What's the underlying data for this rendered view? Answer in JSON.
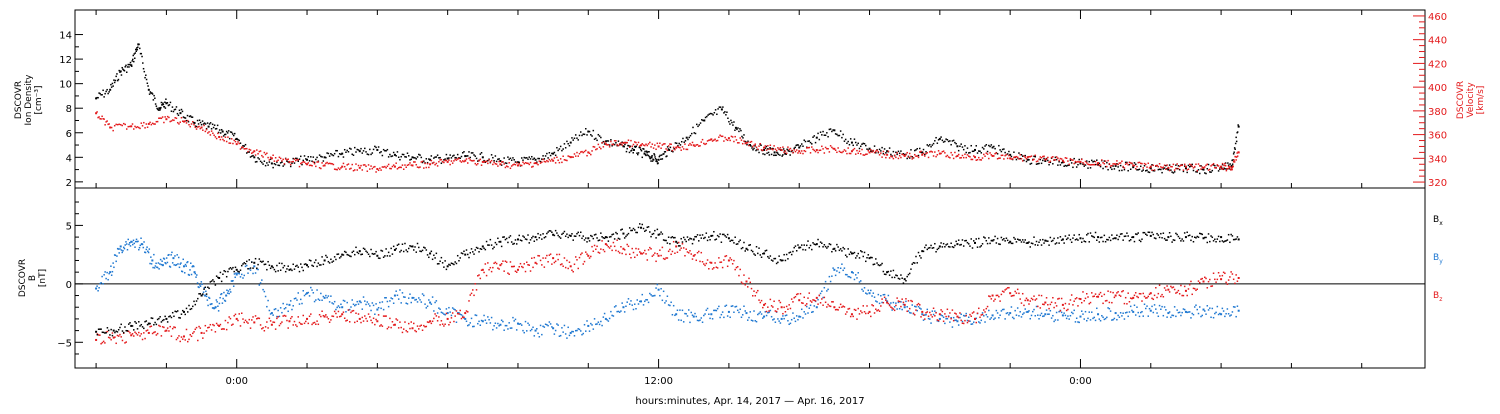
{
  "chart_data": [
    {
      "type": "scatter",
      "panel": "top",
      "left_axis_label": [
        "DSCOVR",
        "Ion Density",
        "[cm⁻³]"
      ],
      "right_axis_label": [
        "DSCOVR",
        "Velocity",
        "[km/s]"
      ],
      "y_left": {
        "ylim": [
          1.5,
          16
        ],
        "ticks": [
          2,
          4,
          6,
          8,
          10,
          12,
          14
        ],
        "tick_labels": [
          "2",
          "4",
          "6",
          "8",
          "10",
          "12",
          "14"
        ]
      },
      "y_right": {
        "ylim": [
          315,
          465
        ],
        "ticks": [
          320,
          340,
          360,
          380,
          400,
          420,
          440,
          460
        ],
        "tick_labels": [
          "320",
          "340",
          "360",
          "380",
          "400",
          "420",
          "440",
          "460"
        ]
      },
      "series": [
        {
          "name": "",
          "axis": "left",
          "color": "#000000",
          "x": [
            -4.0,
            -3.6,
            -3.3,
            -3.0,
            -2.8,
            -2.5,
            -2.2,
            -2.0,
            -1.6,
            -1.2,
            -0.8,
            -0.4,
            0.0,
            0.5,
            1.0,
            1.5,
            2.0,
            2.5,
            3.0,
            3.5,
            4.0,
            4.5,
            5.0,
            5.5,
            6.0,
            6.5,
            7.0,
            7.5,
            8.0,
            8.5,
            9.0,
            9.5,
            10.0,
            10.5,
            11.0,
            11.3,
            11.6,
            11.8,
            12.0,
            12.3,
            12.8,
            13.3,
            13.8,
            14.2,
            14.6,
            15.0,
            15.3,
            15.6,
            16.0,
            16.5,
            17.0,
            17.5,
            18.0,
            18.5,
            19.0,
            19.5,
            20.0,
            20.5,
            21.0,
            21.5,
            22.0,
            22.5,
            23.0,
            23.5,
            24.0,
            24.5,
            25.0,
            25.5,
            26.0,
            26.5,
            27.0,
            27.5,
            28.0,
            28.3,
            28.5
          ],
          "y": [
            8.8,
            9.5,
            11.0,
            11.5,
            13.2,
            9.5,
            8.0,
            8.4,
            7.6,
            6.8,
            6.5,
            6.1,
            5.5,
            4.0,
            3.5,
            3.6,
            3.8,
            4.0,
            4.3,
            4.5,
            4.6,
            4.2,
            4.0,
            3.8,
            3.9,
            4.1,
            4.0,
            3.7,
            3.6,
            3.8,
            4.3,
            5.2,
            6.1,
            5.3,
            4.9,
            4.6,
            4.3,
            4.0,
            3.8,
            4.6,
            5.6,
            7.0,
            7.9,
            6.4,
            5.0,
            4.6,
            4.4,
            4.3,
            4.8,
            5.6,
            6.2,
            5.2,
            4.7,
            4.5,
            4.2,
            4.4,
            5.5,
            4.9,
            4.6,
            4.8,
            4.2,
            3.8,
            3.7,
            3.6,
            3.5,
            3.4,
            3.3,
            3.2,
            3.1,
            3.0,
            3.1,
            3.0,
            3.2,
            3.3,
            6.5
          ]
        },
        {
          "name": "",
          "axis": "right",
          "color": "#e41a1c",
          "x": [
            -4.0,
            -3.6,
            -3.0,
            -2.5,
            -2.0,
            -1.5,
            -1.0,
            -0.5,
            0.0,
            0.5,
            1.0,
            1.5,
            2.0,
            2.5,
            3.0,
            3.5,
            4.0,
            4.5,
            5.0,
            5.5,
            6.0,
            6.5,
            7.0,
            7.5,
            8.0,
            8.5,
            9.0,
            9.5,
            10.0,
            10.5,
            11.0,
            11.5,
            12.0,
            12.5,
            13.0,
            13.5,
            14.0,
            14.5,
            15.0,
            15.5,
            16.0,
            16.5,
            17.0,
            17.5,
            18.0,
            18.5,
            19.0,
            19.5,
            20.0,
            20.5,
            21.0,
            21.5,
            22.0,
            22.5,
            23.0,
            23.5,
            24.0,
            24.5,
            25.0,
            25.5,
            26.0,
            26.5,
            27.0,
            27.5,
            28.0,
            28.3,
            28.5
          ],
          "y": [
            378,
            366,
            367,
            369,
            373,
            371,
            366,
            358,
            352,
            346,
            340,
            337,
            335,
            334,
            333,
            332,
            331,
            333,
            334,
            335,
            337,
            338,
            337,
            335,
            334,
            336,
            338,
            341,
            345,
            352,
            353,
            351,
            350,
            349,
            351,
            356,
            357,
            353,
            349,
            347,
            346,
            347,
            348,
            346,
            345,
            343,
            342,
            343,
            344,
            342,
            341,
            342,
            340,
            341,
            339,
            338,
            337,
            336,
            335,
            334,
            333,
            332,
            333,
            332,
            333,
            332,
            345
          ]
        }
      ]
    },
    {
      "type": "scatter",
      "panel": "bottom",
      "left_axis_label": [
        "DSCOVR",
        "B",
        "[nT]"
      ],
      "ylim": [
        -7.2,
        8.2
      ],
      "ticks": [
        -5,
        0,
        5
      ],
      "tick_labels": [
        "−5",
        "0",
        "5"
      ],
      "zero_line": true,
      "series": [
        {
          "name": "Bx",
          "color": "#000000",
          "x": [
            -4.0,
            -3.5,
            -3.0,
            -2.5,
            -2.0,
            -1.5,
            -1.0,
            -0.5,
            0.0,
            0.5,
            1.0,
            1.5,
            2.0,
            2.5,
            3.0,
            3.5,
            4.0,
            4.5,
            5.0,
            5.5,
            6.0,
            6.5,
            7.0,
            7.5,
            8.0,
            8.5,
            9.0,
            9.5,
            10.0,
            10.5,
            11.0,
            11.5,
            12.0,
            12.5,
            13.0,
            13.5,
            14.0,
            14.5,
            15.0,
            15.5,
            16.0,
            16.5,
            17.0,
            17.5,
            18.0,
            18.5,
            19.0,
            19.5,
            20.0,
            20.5,
            21.0,
            21.5,
            22.0,
            22.5,
            23.0,
            23.5,
            24.0,
            24.5,
            25.0,
            25.5,
            26.0,
            26.5,
            27.0,
            27.5,
            28.0,
            28.5
          ],
          "y": [
            -4.1,
            -4.0,
            -3.6,
            -3.4,
            -3.0,
            -2.4,
            -1.0,
            0.5,
            1.2,
            1.8,
            1.5,
            1.2,
            1.6,
            2.0,
            2.5,
            2.8,
            2.4,
            2.9,
            3.2,
            2.6,
            1.5,
            2.5,
            3.2,
            3.6,
            3.8,
            4.0,
            4.2,
            4.1,
            3.9,
            4.0,
            4.3,
            4.8,
            4.2,
            3.6,
            3.8,
            4.1,
            3.9,
            3.0,
            2.6,
            2.0,
            3.1,
            3.4,
            3.0,
            2.6,
            2.2,
            1.0,
            0.4,
            2.8,
            3.2,
            3.4,
            3.5,
            3.7,
            3.6,
            3.5,
            3.7,
            3.8,
            3.9,
            4.0,
            3.9,
            4.0,
            4.1,
            4.0,
            4.0,
            3.9,
            4.0,
            3.8
          ]
        },
        {
          "name": "By",
          "color": "#1f78d1",
          "x": [
            -4.0,
            -3.6,
            -3.3,
            -3.0,
            -2.7,
            -2.4,
            -2.1,
            -1.8,
            -1.5,
            -1.2,
            -0.9,
            -0.6,
            -0.3,
            0.0,
            0.5,
            1.0,
            1.5,
            2.0,
            2.5,
            3.0,
            3.5,
            4.0,
            4.5,
            5.0,
            5.5,
            6.0,
            6.5,
            7.0,
            7.5,
            8.0,
            8.5,
            9.0,
            9.5,
            10.0,
            10.5,
            11.0,
            11.5,
            12.0,
            12.5,
            13.0,
            13.5,
            14.0,
            14.5,
            15.0,
            15.5,
            16.0,
            16.5,
            17.0,
            17.5,
            18.0,
            18.5,
            19.0,
            19.5,
            20.0,
            20.5,
            21.0,
            21.5,
            22.0,
            22.5,
            23.0,
            23.5,
            24.0,
            24.5,
            25.0,
            25.5,
            26.0,
            26.5,
            27.0,
            27.5,
            28.0,
            28.5
          ],
          "y": [
            -0.4,
            1.0,
            3.2,
            3.6,
            3.4,
            2.0,
            1.6,
            2.2,
            1.5,
            1.0,
            -1.0,
            -2.0,
            -1.0,
            0.8,
            1.5,
            -2.5,
            -1.8,
            -0.8,
            -1.2,
            -2.0,
            -1.5,
            -2.2,
            -1.0,
            -1.2,
            -1.6,
            -2.5,
            -3.0,
            -3.2,
            -3.5,
            -3.4,
            -4.0,
            -3.8,
            -4.2,
            -3.6,
            -3.0,
            -2.0,
            -1.5,
            -0.5,
            -2.6,
            -2.8,
            -2.6,
            -2.4,
            -2.5,
            -2.8,
            -3.0,
            -2.8,
            -2.0,
            1.2,
            1.0,
            -0.8,
            -1.5,
            -2.0,
            -2.6,
            -3.0,
            -3.2,
            -3.0,
            -2.7,
            -2.5,
            -2.4,
            -2.6,
            -2.7,
            -2.8,
            -2.6,
            -2.5,
            -2.4,
            -2.3,
            -2.5,
            -2.4,
            -2.2,
            -2.6,
            -2.3
          ]
        },
        {
          "name": "Bz",
          "color": "#e41a1c",
          "x": [
            -4.0,
            -3.5,
            -3.0,
            -2.5,
            -2.0,
            -1.5,
            -1.0,
            -0.5,
            0.0,
            0.5,
            1.0,
            1.5,
            2.0,
            2.5,
            3.0,
            3.5,
            4.0,
            4.5,
            5.0,
            5.5,
            6.0,
            6.5,
            7.0,
            7.5,
            8.0,
            8.5,
            9.0,
            9.5,
            10.0,
            10.5,
            11.0,
            11.5,
            12.0,
            12.5,
            13.0,
            13.5,
            14.0,
            14.5,
            15.0,
            15.5,
            16.0,
            16.5,
            17.0,
            17.5,
            18.0,
            18.5,
            19.0,
            19.5,
            20.0,
            20.5,
            21.0,
            21.5,
            22.0,
            22.5,
            23.0,
            23.5,
            24.0,
            24.5,
            25.0,
            25.5,
            26.0,
            26.5,
            27.0,
            27.5,
            28.0,
            28.5
          ],
          "y": [
            -4.8,
            -4.6,
            -4.4,
            -4.2,
            -4.0,
            -4.5,
            -4.2,
            -3.6,
            -3.0,
            -3.3,
            -3.5,
            -3.2,
            -3.0,
            -2.8,
            -2.6,
            -3.0,
            -3.2,
            -3.5,
            -3.8,
            -3.2,
            -3.0,
            -2.5,
            1.2,
            1.6,
            1.2,
            1.8,
            2.2,
            1.5,
            2.4,
            3.4,
            3.0,
            2.6,
            2.4,
            3.2,
            2.4,
            1.8,
            2.0,
            0.2,
            -1.8,
            -2.0,
            -1.4,
            -1.2,
            -2.0,
            -2.6,
            -2.4,
            -1.6,
            -1.8,
            -2.4,
            -2.6,
            -2.8,
            -3.0,
            -1.0,
            -0.8,
            -1.4,
            -1.6,
            -1.8,
            -1.3,
            -1.1,
            -1.0,
            -1.2,
            -0.8,
            -0.5,
            -0.6,
            0.2,
            0.4,
            0.5
          ]
        }
      ]
    }
  ],
  "legend": {
    "bx": "B",
    "bx_sub": "x",
    "by": "B",
    "by_sub": "y",
    "bz": "B",
    "bz_sub": "z"
  },
  "x_axis": {
    "xlim": [
      -4.6,
      33.8
    ],
    "major_ticks": [
      0,
      12,
      24
    ],
    "tick_labels": [
      "0:00",
      "12:00",
      "0:00"
    ],
    "minor_tick_step": 2,
    "title": "hours:minutes, Apr. 14, 2017 — Apr. 16, 2017"
  },
  "colors": {
    "black": "#000000",
    "red": "#e41a1c",
    "blue": "#1f78d1"
  }
}
